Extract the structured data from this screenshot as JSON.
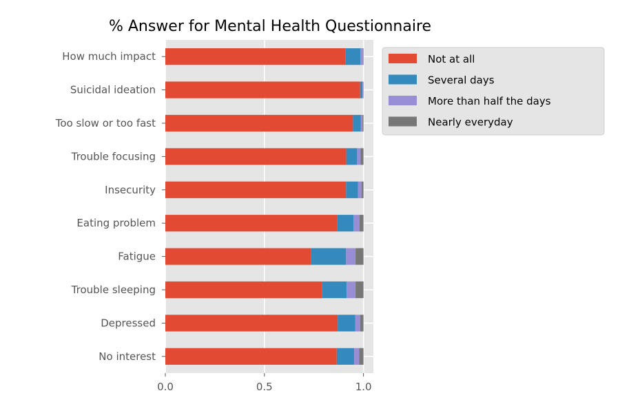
{
  "chart_data": {
    "type": "bar",
    "orientation": "horizontal",
    "stacked": true,
    "title": "% Answer for Mental Health Questionnaire",
    "xlabel": "",
    "ylabel": "",
    "xlim": [
      0,
      1.05
    ],
    "xticks": [
      0.0,
      0.5,
      1.0
    ],
    "xtick_labels": [
      "0.0",
      "0.5",
      "1.0"
    ],
    "grid": true,
    "legend_position": "outside-top-right",
    "categories": [
      "No interest",
      "Depressed",
      "Trouble sleeping",
      "Fatigue",
      "Eating problem",
      "Insecurity",
      "Trouble focusing",
      "Too slow or too fast",
      "Suicidal ideation",
      "How much impact"
    ],
    "series": [
      {
        "name": "Not at all",
        "color": "#E24A33",
        "values": [
          0.865,
          0.87,
          0.79,
          0.735,
          0.867,
          0.912,
          0.913,
          0.947,
          0.983,
          0.91
        ]
      },
      {
        "name": "Several days",
        "color": "#348ABD",
        "values": [
          0.088,
          0.088,
          0.125,
          0.177,
          0.083,
          0.06,
          0.055,
          0.04,
          0.012,
          0.075
        ]
      },
      {
        "name": "More than half the days",
        "color": "#988ED5",
        "values": [
          0.025,
          0.025,
          0.045,
          0.048,
          0.03,
          0.018,
          0.017,
          0.008,
          0.003,
          0.012
        ]
      },
      {
        "name": "Nearly everyday",
        "color": "#777777",
        "values": [
          0.022,
          0.017,
          0.04,
          0.04,
          0.02,
          0.01,
          0.015,
          0.005,
          0.002,
          0.003
        ]
      }
    ]
  }
}
